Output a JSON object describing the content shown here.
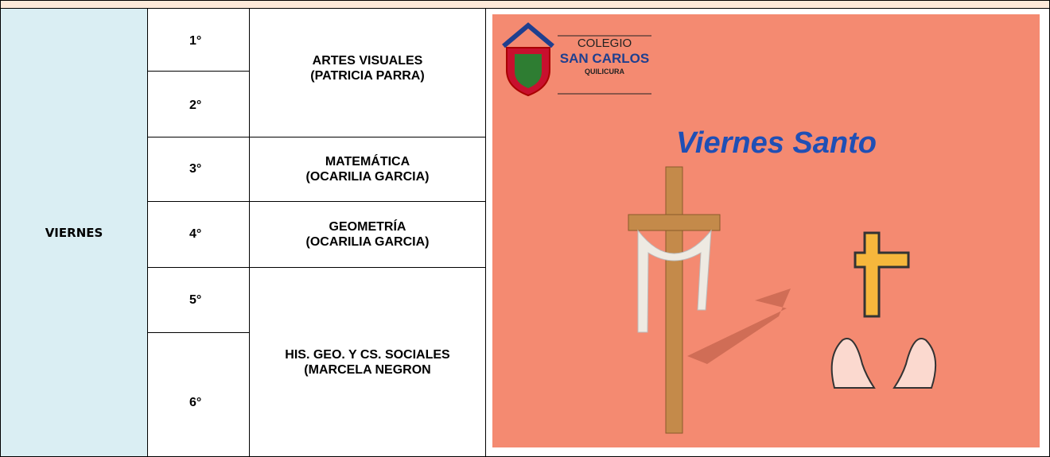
{
  "table": {
    "day": "VIERNES",
    "levels": [
      "1°",
      "2°",
      "3°",
      "4°",
      "5°",
      "6°"
    ],
    "subjects": [
      {
        "lines": [
          "ARTES VISUALES",
          "(PATRICIA PARRA)"
        ]
      },
      {
        "lines": [
          "MATEMÁTICA",
          "(OCARILIA GARCIA)"
        ]
      },
      {
        "lines": [
          "GEOMETRÍA",
          "(OCARILIA GARCIA)"
        ]
      },
      {
        "lines": [
          "HIS. GEO. Y CS. SOCIALES",
          "(MARCELA NEGRON"
        ]
      }
    ]
  },
  "image": {
    "logo": [
      "COLEGIO",
      "SAN CARLOS",
      "QUILICURA"
    ],
    "title": "Viernes Santo"
  }
}
